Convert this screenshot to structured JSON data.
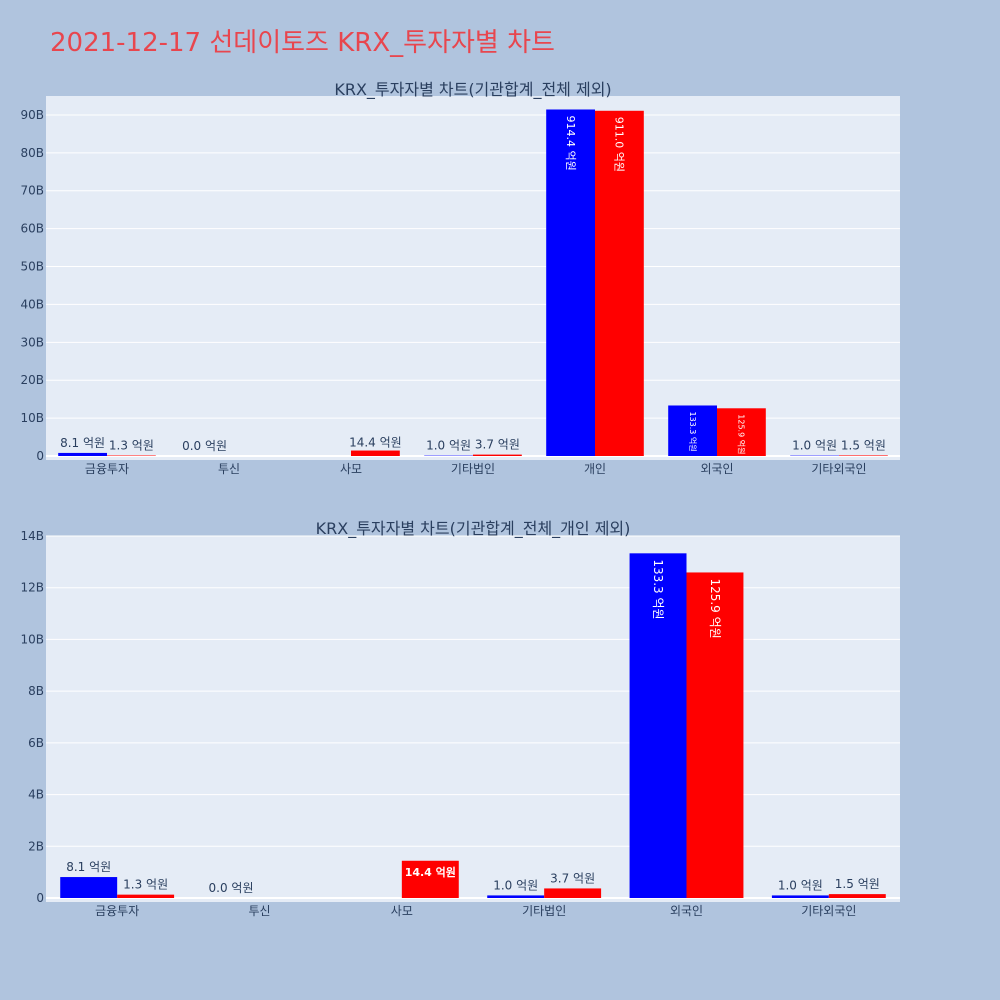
{
  "page": {
    "title": "2021-12-17 선데이토즈 KRX_투자자별 차트"
  },
  "colors": {
    "background": "#b0c4de",
    "plot_bg": "#e5ecf6",
    "title": "#e8464e",
    "series_a": "#0000ff",
    "series_b": "#ff0000",
    "text": "#2a3f5f"
  },
  "chart_data": [
    {
      "type": "bar",
      "title": "KRX_투자자별 차트(기관합계_전체 제외)",
      "categories": [
        "금융투자",
        "투신",
        "사모",
        "기타법인",
        "개인",
        "외국인",
        "기타외국인"
      ],
      "y_ticks": [
        "0",
        "10B",
        "20B",
        "30B",
        "40B",
        "50B",
        "60B",
        "70B",
        "80B",
        "90B"
      ],
      "ylim": [
        0,
        95000000000
      ],
      "tick_step": 10000000000,
      "grid": true,
      "series": [
        {
          "color": "#0000ff",
          "values": [
            810000000,
            0,
            null,
            100000000,
            91440000000,
            13330000000,
            100000000
          ],
          "labels": [
            "8.1 억원",
            "0.0 억원",
            null,
            "1.0 억원",
            "914.4 억원",
            "133.3 억원",
            "1.0 억원"
          ]
        },
        {
          "color": "#ff0000",
          "values": [
            130000000,
            null,
            1440000000,
            370000000,
            91100000000,
            12590000000,
            150000000
          ],
          "labels": [
            "1.3 억원",
            null,
            "14.4 억원",
            "3.7 억원",
            "911.0 억원",
            "125.9 억원",
            "1.5 억원"
          ]
        }
      ]
    },
    {
      "type": "bar",
      "title": "KRX_투자자별 차트(기관합계_전체_개인 제외)",
      "categories": [
        "금융투자",
        "투신",
        "사모",
        "기타법인",
        "외국인",
        "기타외국인"
      ],
      "y_ticks": [
        "0",
        "2B",
        "4B",
        "6B",
        "8B",
        "10B",
        "12B",
        "14B"
      ],
      "ylim": [
        0,
        14000000000
      ],
      "tick_step": 2000000000,
      "grid": true,
      "series": [
        {
          "color": "#0000ff",
          "values": [
            810000000,
            0,
            null,
            100000000,
            13330000000,
            100000000
          ],
          "labels": [
            "8.1 억원",
            "0.0 억원",
            null,
            "1.0 억원",
            "133.3 억원",
            "1.0 억원"
          ]
        },
        {
          "color": "#ff0000",
          "values": [
            130000000,
            null,
            1440000000,
            370000000,
            12590000000,
            150000000
          ],
          "labels": [
            "1.3 억원",
            null,
            "14.4 억원",
            "3.7 억원",
            "125.9 억원",
            "1.5 억원"
          ]
        }
      ]
    }
  ]
}
